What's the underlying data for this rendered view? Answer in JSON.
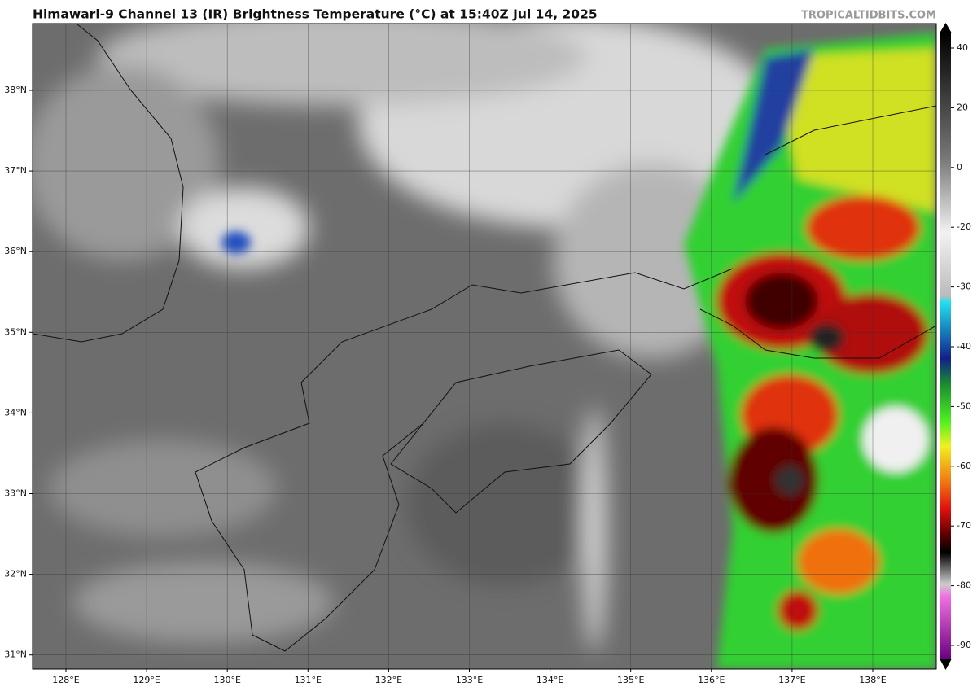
{
  "header": {
    "title": "Himawari-9 Channel 13 (IR) Brightness Temperature (°C) at 15:40Z Jul 14, 2025",
    "source": "TROPICALTIDBITS.COM"
  },
  "map": {
    "lat_labels": [
      "38°N",
      "37°N",
      "36°N",
      "35°N",
      "34°N",
      "33°N",
      "32°N",
      "31°N"
    ],
    "lon_labels": [
      "128°E",
      "129°E",
      "130°E",
      "131°E",
      "132°E",
      "133°E",
      "134°E",
      "135°E",
      "136°E",
      "137°E",
      "138°E"
    ]
  },
  "colorbar": {
    "ticks": [
      40,
      20,
      0,
      -20,
      -30,
      -40,
      -50,
      -60,
      -70,
      -80,
      -90
    ]
  }
}
